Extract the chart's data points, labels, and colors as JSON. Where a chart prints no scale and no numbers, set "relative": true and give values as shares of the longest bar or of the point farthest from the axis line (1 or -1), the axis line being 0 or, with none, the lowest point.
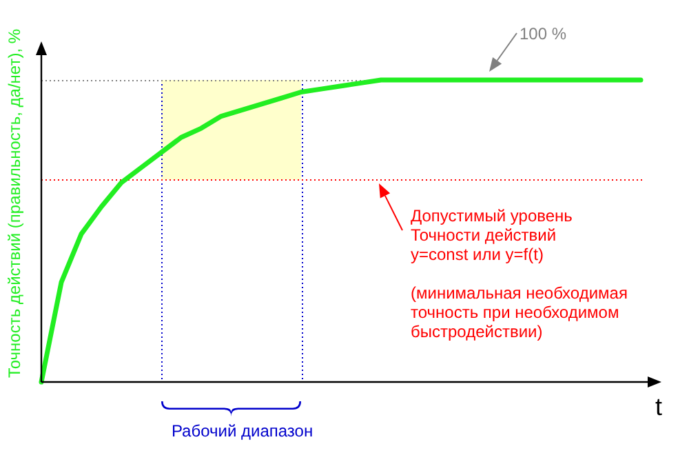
{
  "chart_data": {
    "type": "line",
    "relative": true,
    "xlabel": "t",
    "ylabel": "Точность действий (правильность, да/нет), %",
    "categories": [
      null,
      null,
      null,
      null,
      null,
      null,
      null,
      null,
      null,
      null,
      null,
      null,
      null,
      null,
      null,
      null,
      null,
      null,
      null,
      null,
      null,
      null,
      null,
      null,
      null,
      null,
      null,
      null,
      null,
      null,
      null
    ],
    "tick_labels": false,
    "grid": false,
    "legend": false,
    "marker": "none",
    "line_style": "solid",
    "series": [
      {
        "color": "#22ee22",
        "values": [
          0,
          0.33,
          0.49,
          0.58,
          0.66,
          0.71,
          0.76,
          0.81,
          0.84,
          0.88,
          0.9,
          0.92,
          0.94,
          0.96,
          0.97,
          0.98,
          0.99,
          1,
          1,
          1,
          1,
          1,
          1,
          1,
          1,
          1,
          1,
          1,
          1,
          1,
          1
        ]
      }
    ],
    "ref_lines": [
      {
        "axis": "y",
        "value": 1,
        "label": "100 %",
        "color": "#808080",
        "line_style": "dotted"
      },
      {
        "axis": "y",
        "value": 0.67,
        "color": "#ff0000",
        "line_style": "dotted"
      }
    ],
    "bands": [
      {
        "axis": "y",
        "from": 0.67,
        "to": 1,
        "color": "#ffffcc"
      }
    ],
    "annotations": [
      {
        "text": "Допустимый уровень\nТочности действий\ny=const или y=f(t)\n\n(минимальная необходимая\nточность при необходимом\nбыстродействии)",
        "y": 0.67
      },
      "Рабочий диапазон"
    ]
  }
}
